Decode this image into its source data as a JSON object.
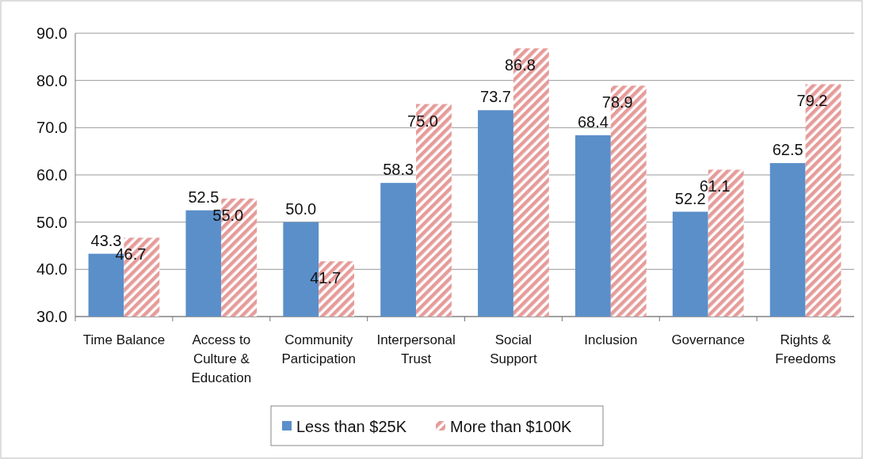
{
  "chart_data": {
    "type": "bar",
    "categories": [
      "Time Balance",
      "Access to Culture & Education",
      "Community Participation",
      "Interpersonal Trust",
      "Social Support",
      "Inclusion",
      "Governance",
      "Rights & Freedoms"
    ],
    "series": [
      {
        "name": "Less than $25K",
        "color": "#5b8fc9",
        "values": [
          43.3,
          52.5,
          50.0,
          58.3,
          73.7,
          68.4,
          52.2,
          62.5
        ],
        "value_labels": [
          "43.3",
          "52.5",
          "50.0",
          "58.3",
          "73.7",
          "68.4",
          "52.2",
          "62.5"
        ]
      },
      {
        "name": "More than $100K",
        "color": "#e59c9a",
        "values": [
          46.7,
          55.0,
          41.7,
          75.0,
          86.8,
          78.9,
          61.1,
          79.2
        ],
        "value_labels": [
          "46.7",
          "55.0",
          "41.7",
          "75.0",
          "86.8",
          "78.9",
          "61.1",
          "79.2"
        ]
      }
    ],
    "ylim": [
      30,
      90
    ],
    "yticks": [
      {
        "value": 30,
        "label": "30.0"
      },
      {
        "value": 40,
        "label": "40.0"
      },
      {
        "value": 50,
        "label": "50.0"
      },
      {
        "value": 60,
        "label": "60.0"
      },
      {
        "value": 70,
        "label": "70.0"
      },
      {
        "value": 80,
        "label": "80.0"
      },
      {
        "value": 90,
        "label": "90.0"
      }
    ],
    "grid": "y",
    "legend": "bottom"
  }
}
